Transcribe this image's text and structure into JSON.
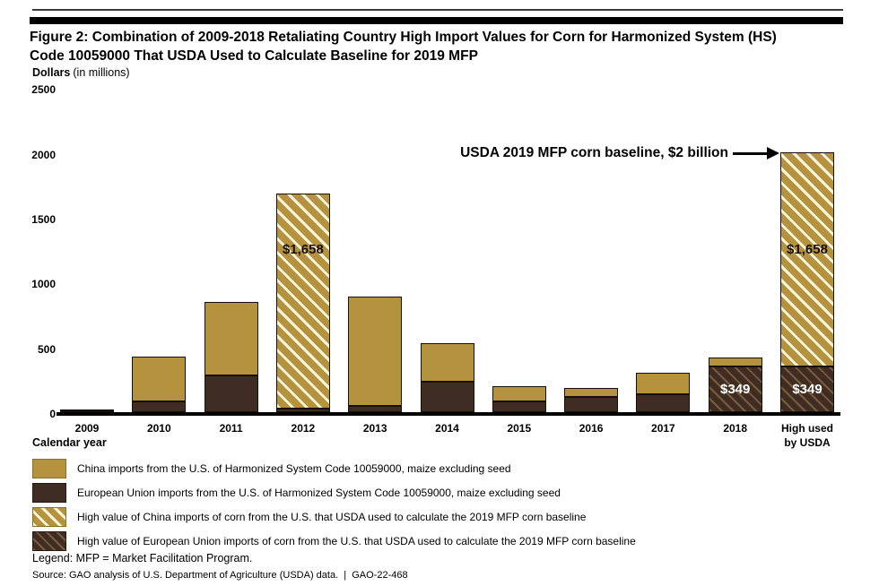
{
  "figure": {
    "title": "Figure 2: Combination of 2009-2018 Retaliating Country High Import Values for Corn for Harmonized System (HS) Code 10059000 That USDA Used to Calculate Baseline for 2019 MFP",
    "y_axis_unit_bold": "Dollars",
    "y_axis_unit_note": "(in millions)"
  },
  "chart_data": {
    "type": "bar",
    "stacked": true,
    "title": "Combination of 2009-2018 Retaliating Country High Import Values for Corn for HS Code 10059000 That USDA Used to Calculate Baseline for 2019 MFP",
    "xlabel": "Calendar year",
    "ylabel": "Dollars (in millions)",
    "ylim": [
      0,
      2500
    ],
    "yticks": [
      0,
      500,
      1000,
      1500,
      2000,
      2500
    ],
    "grid": false,
    "legend_position": "bottom",
    "annotation": "USDA 2019 MFP corn baseline, $2 billion",
    "annotation_points_to": "High used by USDA",
    "categories": [
      "2009",
      "2010",
      "2011",
      "2012",
      "2013",
      "2014",
      "2015",
      "2016",
      "2017",
      "2018",
      "High used by USDA"
    ],
    "category_lines": [
      [
        "2009"
      ],
      [
        "2010"
      ],
      [
        "2011"
      ],
      [
        "2012"
      ],
      [
        "2013"
      ],
      [
        "2014"
      ],
      [
        "2015"
      ],
      [
        "2016"
      ],
      [
        "2017"
      ],
      [
        "2018"
      ],
      [
        "High used",
        "by USDA"
      ]
    ],
    "series": [
      {
        "name": "European Union imports from the U.S. of Harmonized System Code 10059000, maize excluding seed",
        "color": "#3f2d23",
        "values": [
          15,
          80,
          285,
          30,
          45,
          235,
          80,
          120,
          140,
          349,
          349
        ],
        "hatched": [
          false,
          false,
          false,
          false,
          false,
          false,
          false,
          false,
          false,
          true,
          true
        ],
        "data_labels": [
          null,
          null,
          null,
          null,
          null,
          null,
          null,
          null,
          null,
          "$349",
          "$349"
        ]
      },
      {
        "name": "China imports from the U.S. of Harmonized System Code 10059000, maize excluding seed",
        "color": "#b5923e",
        "values": [
          5,
          350,
          565,
          1658,
          845,
          300,
          120,
          65,
          165,
          70,
          1658
        ],
        "hatched": [
          false,
          false,
          false,
          true,
          false,
          false,
          false,
          false,
          false,
          false,
          true
        ],
        "data_labels": [
          null,
          null,
          null,
          "$1,658",
          null,
          null,
          null,
          null,
          null,
          null,
          "$1,658"
        ]
      }
    ]
  },
  "legend": {
    "items": [
      {
        "swatch": "gold-solid",
        "label": "China imports from the U.S. of Harmonized System Code 10059000, maize excluding seed"
      },
      {
        "swatch": "brown-solid",
        "label": "European Union imports from the U.S. of Harmonized System Code 10059000, maize excluding seed"
      },
      {
        "swatch": "gold-hatched",
        "label": "High value of China imports of corn from the U.S. that USDA used to calculate the 2019 MFP corn baseline"
      },
      {
        "swatch": "brown-hatched",
        "label": "High value of European Union imports of corn from the U.S. that USDA used to calculate the 2019 MFP corn baseline"
      }
    ]
  },
  "footer": {
    "legend_note": "Legend: MFP = Market Facilitation Program.",
    "source": "Source: GAO analysis of U.S. Department of Agriculture (USDA) data.  |  GAO-22-468"
  },
  "colors": {
    "china_gold": "#b5923e",
    "eu_brown": "#3f2d23",
    "gold_hatch_line": "#fdf4da",
    "brown_hatch_line": "#7a5c3c",
    "axis": "#000000"
  }
}
